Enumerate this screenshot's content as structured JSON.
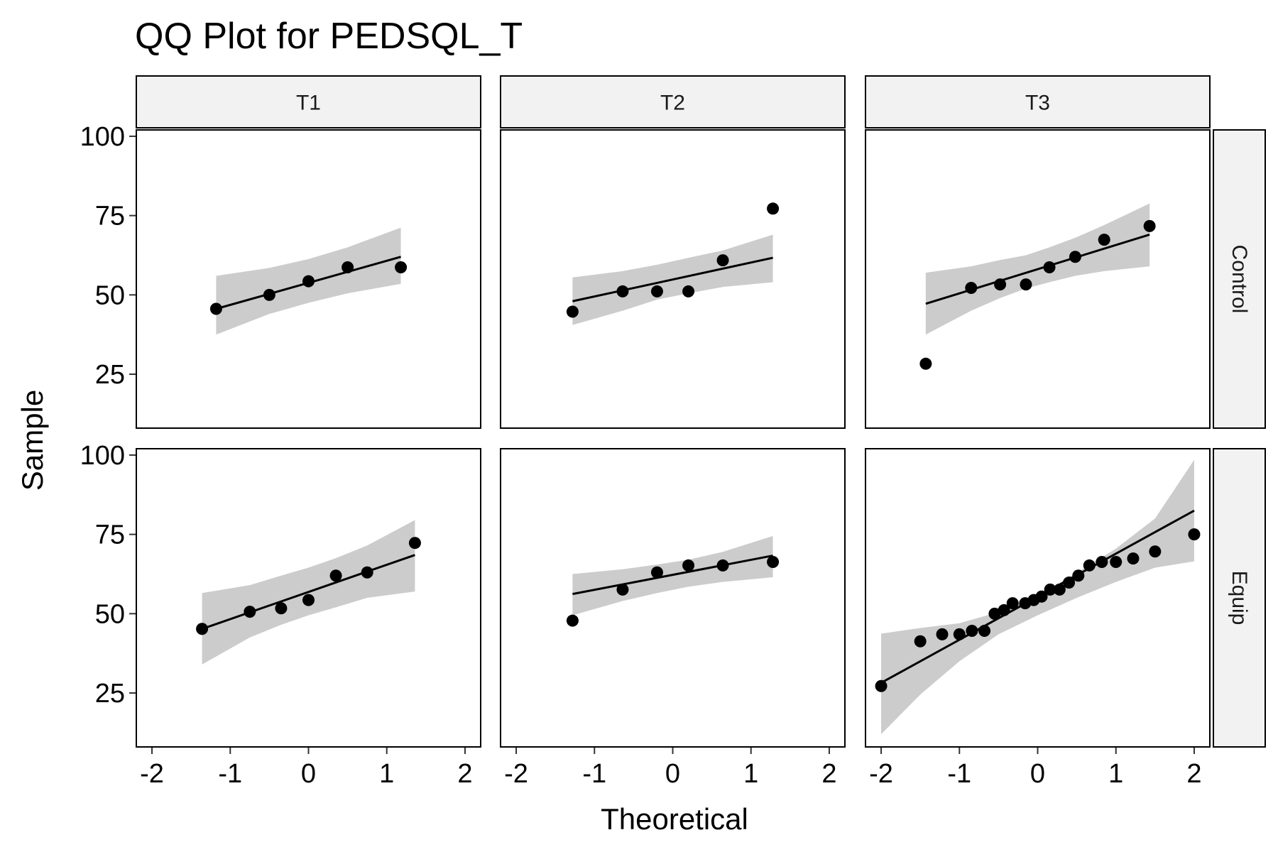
{
  "chart_data": {
    "type": "scatter",
    "title": "QQ Plot for PEDSQL_T",
    "xlabel": "Theoretical",
    "ylabel": "Sample",
    "facet_columns": [
      "T1",
      "T2",
      "T3"
    ],
    "facet_rows": [
      "Control",
      "Equip"
    ],
    "xlim": [
      -2.2,
      2.2
    ],
    "ylim": [
      8,
      102
    ],
    "xticks": [
      -2,
      -1,
      0,
      1,
      2
    ],
    "yticks": [
      25,
      50,
      75,
      100
    ],
    "grid": false,
    "colors": {
      "points": "#000000",
      "line": "#000000",
      "band": "#cccccc",
      "strip_fill": "#f2f2f2",
      "border": "#000000"
    },
    "panels": [
      {
        "col": "T1",
        "row": "Control",
        "points": [
          [
            -1.18,
            45.6
          ],
          [
            -0.5,
            50.0
          ],
          [
            0.0,
            54.3
          ],
          [
            0.5,
            58.7
          ],
          [
            1.18,
            58.7
          ]
        ],
        "line": [
          [
            -1.18,
            45.6
          ],
          [
            1.18,
            62.0
          ]
        ],
        "band_upper": [
          [
            -1.18,
            56.0
          ],
          [
            -0.5,
            58.5
          ],
          [
            0.0,
            61.3
          ],
          [
            0.5,
            65.0
          ],
          [
            1.18,
            71.2
          ]
        ],
        "band_lower": [
          [
            -1.18,
            37.5
          ],
          [
            -0.5,
            44.0
          ],
          [
            0.0,
            47.5
          ],
          [
            0.5,
            50.5
          ],
          [
            1.18,
            53.5
          ]
        ]
      },
      {
        "col": "T2",
        "row": "Control",
        "points": [
          [
            -1.28,
            44.7
          ],
          [
            -0.64,
            51.1
          ],
          [
            -0.2,
            51.1
          ],
          [
            0.2,
            51.1
          ],
          [
            0.64,
            60.9
          ],
          [
            1.28,
            77.2
          ]
        ],
        "line": [
          [
            -1.28,
            48.0
          ],
          [
            1.28,
            61.7
          ]
        ],
        "band_upper": [
          [
            -1.28,
            55.5
          ],
          [
            -0.64,
            57.5
          ],
          [
            -0.2,
            59.5
          ],
          [
            0.2,
            61.7
          ],
          [
            0.64,
            64.0
          ],
          [
            1.28,
            69.0
          ]
        ],
        "band_lower": [
          [
            -1.28,
            40.5
          ],
          [
            -0.64,
            45.0
          ],
          [
            -0.2,
            48.5
          ],
          [
            0.2,
            50.5
          ],
          [
            0.64,
            52.5
          ],
          [
            1.28,
            54.0
          ]
        ]
      },
      {
        "col": "T3",
        "row": "Control",
        "points": [
          [
            -1.43,
            28.3
          ],
          [
            -0.85,
            52.2
          ],
          [
            -0.48,
            53.3
          ],
          [
            -0.15,
            53.3
          ],
          [
            0.15,
            58.7
          ],
          [
            0.48,
            62.0
          ],
          [
            0.85,
            67.4
          ],
          [
            1.43,
            71.7
          ]
        ],
        "line": [
          [
            -1.43,
            47.2
          ],
          [
            1.43,
            69.0
          ]
        ],
        "band_upper": [
          [
            -1.43,
            57.0
          ],
          [
            -0.85,
            59.0
          ],
          [
            -0.48,
            61.0
          ],
          [
            -0.15,
            62.5
          ],
          [
            0.15,
            65.0
          ],
          [
            0.48,
            68.0
          ],
          [
            0.85,
            72.0
          ],
          [
            1.43,
            78.8
          ]
        ],
        "band_lower": [
          [
            -1.43,
            37.5
          ],
          [
            -0.85,
            45.0
          ],
          [
            -0.48,
            49.0
          ],
          [
            -0.15,
            52.0
          ],
          [
            0.15,
            54.0
          ],
          [
            0.48,
            56.0
          ],
          [
            0.85,
            57.5
          ],
          [
            1.43,
            59.0
          ]
        ]
      },
      {
        "col": "T1",
        "row": "Equip",
        "points": [
          [
            -1.36,
            45.2
          ],
          [
            -0.75,
            50.6
          ],
          [
            -0.35,
            51.7
          ],
          [
            0.0,
            54.3
          ],
          [
            0.35,
            62.0
          ],
          [
            0.75,
            63.0
          ],
          [
            1.36,
            72.3
          ]
        ],
        "line": [
          [
            -1.36,
            45.2
          ],
          [
            1.36,
            68.5
          ]
        ],
        "band_upper": [
          [
            -1.36,
            56.5
          ],
          [
            -0.75,
            59.0
          ],
          [
            -0.35,
            62.0
          ],
          [
            0.0,
            64.5
          ],
          [
            0.35,
            67.5
          ],
          [
            0.75,
            71.5
          ],
          [
            1.36,
            79.5
          ]
        ],
        "band_lower": [
          [
            -1.36,
            34.0
          ],
          [
            -0.75,
            42.5
          ],
          [
            -0.35,
            46.5
          ],
          [
            0.0,
            49.5
          ],
          [
            0.35,
            52.0
          ],
          [
            0.75,
            55.0
          ],
          [
            1.36,
            57.0
          ]
        ]
      },
      {
        "col": "T2",
        "row": "Equip",
        "points": [
          [
            -1.28,
            47.8
          ],
          [
            -0.64,
            57.6
          ],
          [
            -0.2,
            63.0
          ],
          [
            0.2,
            65.2
          ],
          [
            0.64,
            65.2
          ],
          [
            1.28,
            66.3
          ]
        ],
        "line": [
          [
            -1.28,
            56.2
          ],
          [
            1.28,
            68.3
          ]
        ],
        "band_upper": [
          [
            -1.28,
            62.5
          ],
          [
            -0.64,
            64.0
          ],
          [
            -0.2,
            65.5
          ],
          [
            0.2,
            67.0
          ],
          [
            0.64,
            69.5
          ],
          [
            1.28,
            74.5
          ]
        ],
        "band_lower": [
          [
            -1.28,
            49.5
          ],
          [
            -0.64,
            54.0
          ],
          [
            -0.2,
            56.5
          ],
          [
            0.2,
            58.5
          ],
          [
            0.64,
            60.0
          ],
          [
            1.28,
            61.5
          ]
        ]
      },
      {
        "col": "T3",
        "row": "Equip",
        "points": [
          [
            -2.0,
            27.2
          ],
          [
            -1.5,
            41.3
          ],
          [
            -1.22,
            43.5
          ],
          [
            -1.0,
            43.5
          ],
          [
            -0.84,
            44.6
          ],
          [
            -0.68,
            44.6
          ],
          [
            -0.55,
            50.0
          ],
          [
            -0.43,
            51.1
          ],
          [
            -0.32,
            53.3
          ],
          [
            -0.16,
            53.3
          ],
          [
            -0.05,
            54.3
          ],
          [
            0.05,
            55.4
          ],
          [
            0.16,
            57.6
          ],
          [
            0.28,
            57.6
          ],
          [
            0.4,
            59.8
          ],
          [
            0.52,
            62.0
          ],
          [
            0.66,
            65.2
          ],
          [
            0.82,
            66.3
          ],
          [
            1.0,
            66.3
          ],
          [
            1.22,
            67.4
          ],
          [
            1.5,
            69.6
          ],
          [
            2.0,
            75.0
          ]
        ],
        "line": [
          [
            -2.0,
            28.2
          ],
          [
            2.0,
            82.5
          ]
        ],
        "band_upper": [
          [
            -2.0,
            43.7
          ],
          [
            -1.5,
            45.5
          ],
          [
            -1.0,
            47.0
          ],
          [
            -0.5,
            50.5
          ],
          [
            0.0,
            55.5
          ],
          [
            0.5,
            63.0
          ],
          [
            1.0,
            70.5
          ],
          [
            1.5,
            80.0
          ],
          [
            2.0,
            98.5
          ]
        ],
        "band_lower": [
          [
            -2.0,
            12.0
          ],
          [
            -1.5,
            24.5
          ],
          [
            -1.0,
            35.0
          ],
          [
            -0.5,
            43.5
          ],
          [
            0.0,
            49.5
          ],
          [
            0.5,
            55.0
          ],
          [
            1.0,
            60.0
          ],
          [
            1.5,
            64.5
          ],
          [
            2.0,
            66.5
          ]
        ]
      }
    ]
  }
}
